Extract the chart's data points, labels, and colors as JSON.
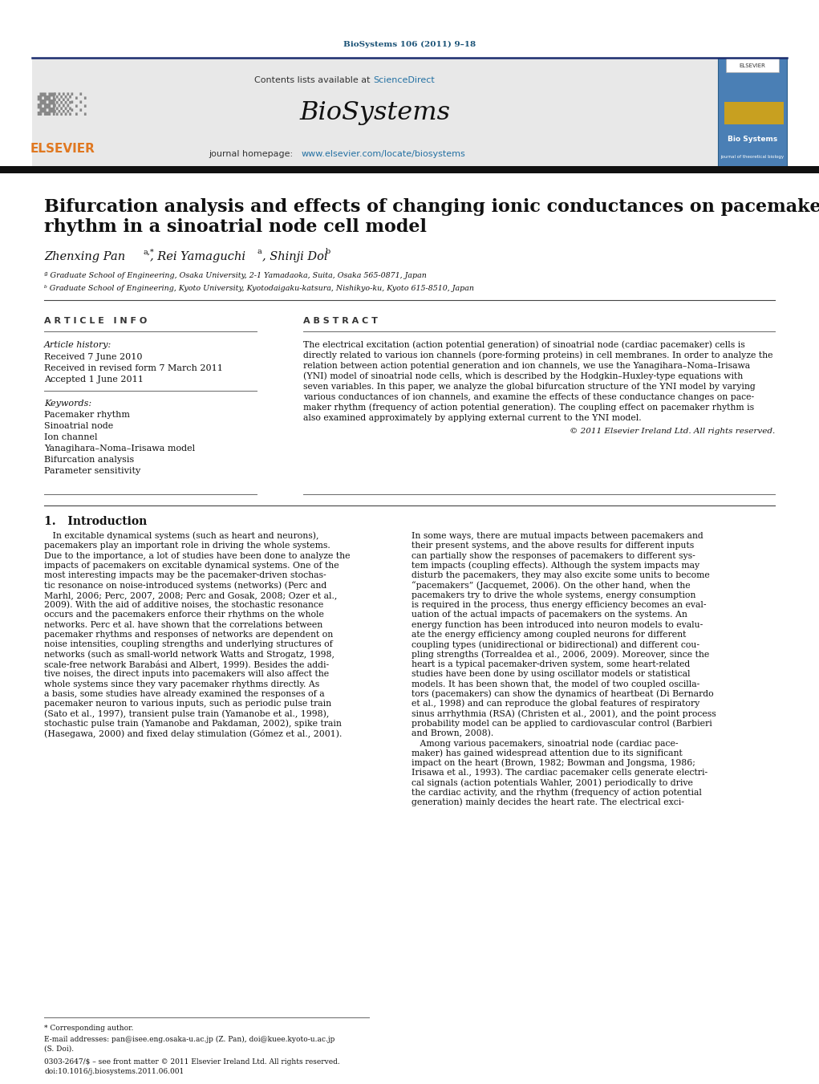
{
  "bg_color": "#ffffff",
  "journal_ref": "BioSystems 106 (2011) 9–18",
  "journal_ref_color": "#1a5276",
  "header_bg": "#e8e8e8",
  "header_border_color": "#1a2c6e",
  "contents_text": "Contents lists available at ",
  "sciencedirect_text": "ScienceDirect",
  "sciencedirect_color": "#2471a3",
  "journal_name": "BioSystems",
  "journal_homepage_prefix": "journal homepage: ",
  "journal_url": "www.elsevier.com/locate/biosystems",
  "journal_url_color": "#2471a3",
  "dark_bar_color": "#1a1a1a",
  "title_line1": "Bifurcation analysis and effects of changing ionic conductances on pacemaker",
  "title_line2": "rhythm in a sinoatrial node cell model",
  "affil_a": "ª Graduate School of Engineering, Osaka University, 2-1 Yamadaoka, Suita, Osaka 565-0871, Japan",
  "affil_b": "ᵇ Graduate School of Engineering, Kyoto University, Kyotodaigaku-katsura, Nishikyo-ku, Kyoto 615-8510, Japan",
  "article_info_title": "A R T I C L E   I N F O",
  "article_history_label": "Article history:",
  "received1": "Received 7 June 2010",
  "received2": "Received in revised form 7 March 2011",
  "accepted": "Accepted 1 June 2011",
  "keywords_label": "Keywords:",
  "keywords": [
    "Pacemaker rhythm",
    "Sinoatrial node",
    "Ion channel",
    "Yanagihara–Noma–Irisawa model",
    "Bifurcation analysis",
    "Parameter sensitivity"
  ],
  "abstract_title": "A B S T R A C T",
  "copyright": "© 2011 Elsevier Ireland Ltd. All rights reserved.",
  "intro_title": "1.   Introduction",
  "abstract_lines": [
    "The electrical excitation (action potential generation) of sinoatrial node (cardiac pacemaker) cells is",
    "directly related to various ion channels (pore-forming proteins) in cell membranes. In order to analyze the",
    "relation between action potential generation and ion channels, we use the Yanagihara–Noma–Irisawa",
    "(YNI) model of sinoatrial node cells, which is described by the Hodgkin–Huxley-type equations with",
    "seven variables. In this paper, we analyze the global bifurcation structure of the YNI model by varying",
    "various conductances of ion channels, and examine the effects of these conductance changes on pace-",
    "maker rhythm (frequency of action potential generation). The coupling effect on pacemaker rhythm is",
    "also examined approximately by applying external current to the YNI model."
  ],
  "left_intro_lines": [
    "   In excitable dynamical systems (such as heart and neurons),",
    "pacemakers play an important role in driving the whole systems.",
    "Due to the importance, a lot of studies have been done to analyze the",
    "impacts of pacemakers on excitable dynamical systems. One of the",
    "most interesting impacts may be the pacemaker-driven stochas-",
    "tic resonance on noise-introduced systems (networks) (Perc and",
    "Marhl, 2006; Perc, 2007, 2008; Perc and Gosak, 2008; Ozer et al.,",
    "2009). With the aid of additive noises, the stochastic resonance",
    "occurs and the pacemakers enforce their rhythms on the whole",
    "networks. Perc et al. have shown that the correlations between",
    "pacemaker rhythms and responses of networks are dependent on",
    "noise intensities, coupling strengths and underlying structures of",
    "networks (such as small-world network Watts and Strogatz, 1998,",
    "scale-free network Barabási and Albert, 1999). Besides the addi-",
    "tive noises, the direct inputs into pacemakers will also affect the",
    "whole systems since they vary pacemaker rhythms directly. As",
    "a basis, some studies have already examined the responses of a",
    "pacemaker neuron to various inputs, such as periodic pulse train",
    "(Sato et al., 1997), transient pulse train (Yamanobe et al., 1998),",
    "stochastic pulse train (Yamanobe and Pakdaman, 2002), spike train",
    "(Hasegawa, 2000) and fixed delay stimulation (Gómez et al., 2001)."
  ],
  "right_intro_lines": [
    "In some ways, there are mutual impacts between pacemakers and",
    "their present systems, and the above results for different inputs",
    "can partially show the responses of pacemakers to different sys-",
    "tem impacts (coupling effects). Although the system impacts may",
    "disturb the pacemakers, they may also excite some units to become",
    "“pacemakers” (Jacquemet, 2006). On the other hand, when the",
    "pacemakers try to drive the whole systems, energy consumption",
    "is required in the process, thus energy efficiency becomes an eval-",
    "uation of the actual impacts of pacemakers on the systems. An",
    "energy function has been introduced into neuron models to evalu-",
    "ate the energy efficiency among coupled neurons for different",
    "coupling types (unidirectional or bidirectional) and different cou-",
    "pling strengths (Torrealdea et al., 2006, 2009). Moreover, since the",
    "heart is a typical pacemaker-driven system, some heart-related",
    "studies have been done by using oscillator models or statistical",
    "models. It has been shown that, the model of two coupled oscilla-",
    "tors (pacemakers) can show the dynamics of heartbeat (Di Bernardo",
    "et al., 1998) and can reproduce the global features of respiratory",
    "sinus arrhythmia (RSA) (Christen et al., 2001), and the point process",
    "probability model can be applied to cardiovascular control (Barbieri",
    "and Brown, 2008).",
    "   Among various pacemakers, sinoatrial node (cardiac pace-",
    "maker) has gained widespread attention due to its significant",
    "impact on the heart (Brown, 1982; Bowman and Jongsma, 1986;",
    "Irisawa et al., 1993). The cardiac pacemaker cells generate electri-",
    "cal signals (action potentials Wahler, 2001) periodically to drive",
    "the cardiac activity, and the rhythm (frequency of action potential",
    "generation) mainly decides the heart rate. The electrical exci-"
  ],
  "footer_corresponding": "* Corresponding author.",
  "footer_email1": "E-mail addresses: pan@isee.eng.osaka-u.ac.jp (Z. Pan), doi@kuee.kyoto-u.ac.jp",
  "footer_email2": "(S. Doi).",
  "footer_ref1": "0303-2647/$ – see front matter © 2011 Elsevier Ireland Ltd. All rights reserved.",
  "footer_ref2": "doi:10.1016/j.biosystems.2011.06.001"
}
